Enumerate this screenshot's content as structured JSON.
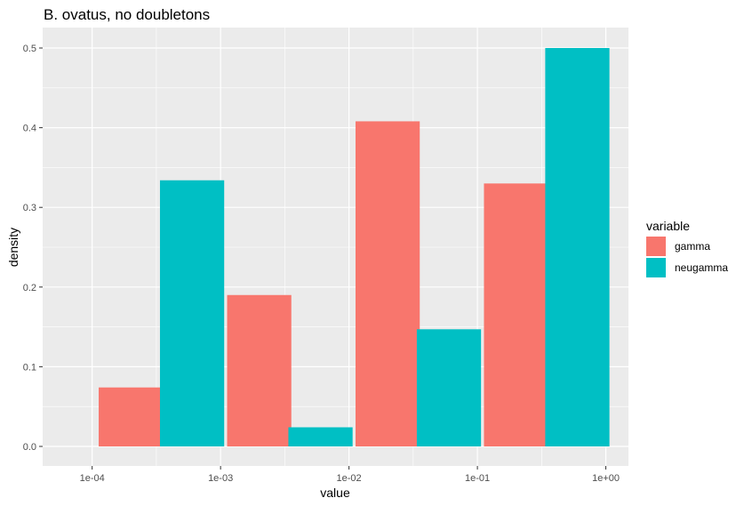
{
  "chart_data": {
    "type": "bar",
    "title": "B. ovatus, no doubletons",
    "xlabel": "value",
    "ylabel": "density",
    "x_scale": "log10",
    "x_ticks": [
      "1e-04",
      "1e-03",
      "1e-02",
      "1e-01",
      "1e+00"
    ],
    "x_tick_values": [
      0.0001,
      0.001,
      0.01,
      0.1,
      1
    ],
    "y_ticks": [
      "0.0",
      "0.1",
      "0.2",
      "0.3",
      "0.4",
      "0.5"
    ],
    "ylim": [
      0,
      0.5
    ],
    "grid": true,
    "legend": {
      "title": "variable",
      "position": "right"
    },
    "series": [
      {
        "name": "gamma",
        "color": "#F8766D",
        "bars": [
          {
            "x": 0.0002,
            "value": 0.074
          },
          {
            "x": 0.002,
            "value": 0.19
          },
          {
            "x": 0.02,
            "value": 0.408
          },
          {
            "x": 0.2,
            "value": 0.33
          }
        ]
      },
      {
        "name": "neugamma",
        "color": "#00BFC4",
        "bars": [
          {
            "x": 0.0006,
            "value": 0.334
          },
          {
            "x": 0.006,
            "value": 0.024
          },
          {
            "x": 0.06,
            "value": 0.147
          },
          {
            "x": 0.6,
            "value": 0.5
          }
        ]
      }
    ]
  }
}
